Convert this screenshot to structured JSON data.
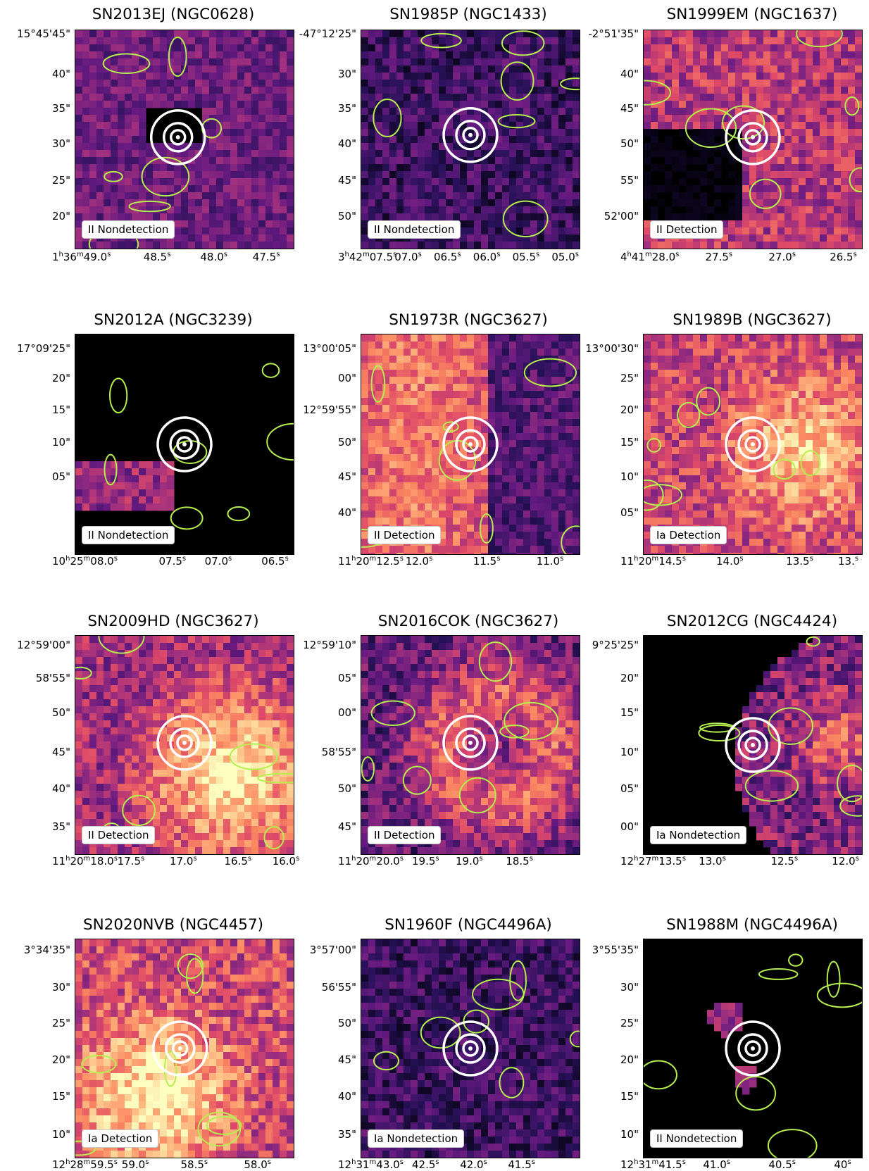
{
  "figure": {
    "contour_color": "#b5ef4e",
    "marker_color": "#ffffff",
    "colormap": "magma",
    "panels": [
      {
        "title": "SN2013EJ (NGC0628)",
        "label": "II Nondetection",
        "yticks": [
          "15°45'45\"",
          "40\"",
          "35\"",
          "30\"",
          "25\"",
          "20\""
        ],
        "xticks": [
          {
            "h": "1",
            "m": "36",
            "s": "49.0"
          },
          {
            "s": "48.5"
          },
          {
            "s": "48.0"
          },
          {
            "s": "47.5"
          }
        ]
      },
      {
        "title": "SN1985P (NGC1433)",
        "label": "II Nondetection",
        "yticks": [
          "-47°12'25\"",
          "30\"",
          "35\"",
          "40\"",
          "45\"",
          "50\""
        ],
        "xticks": [
          {
            "h": "3",
            "m": "42",
            "s": "07.5"
          },
          {
            "s": "07.0"
          },
          {
            "s": "06.5"
          },
          {
            "s": "06.0"
          },
          {
            "s": "05.5"
          },
          {
            "s": "05.0"
          }
        ]
      },
      {
        "title": "SN1999EM (NGC1637)",
        "label": "II Detection",
        "yticks": [
          "-2°51'35\"",
          "40\"",
          "45\"",
          "50\"",
          "55\"",
          "52'00\""
        ],
        "xticks": [
          {
            "h": "4",
            "m": "41",
            "s": "28.0"
          },
          {
            "s": "27.5"
          },
          {
            "s": "27.0"
          },
          {
            "s": "26.5"
          }
        ]
      },
      {
        "title": "SN2012A (NGC3239)",
        "label": "II Nondetection",
        "yticks": [
          "17°09'25\"",
          "20\"",
          "15\"",
          "10\"",
          "05\""
        ],
        "xticks": [
          {
            "h": "10",
            "m": "25",
            "s": "08.0"
          },
          {
            "s": "07.5"
          },
          {
            "s": "07.0"
          },
          {
            "s": "06.5"
          }
        ]
      },
      {
        "title": "SN1973R (NGC3627)",
        "label": "II Detection",
        "yticks": [
          "13°00'05\"",
          "00\"",
          "12°59'55\"",
          "50\"",
          "45\"",
          "40\""
        ],
        "xticks": [
          {
            "h": "11",
            "m": "20",
            "s": "12.5"
          },
          {
            "s": "12.0"
          },
          {
            "s": "11.5"
          },
          {
            "s": "11.0"
          }
        ]
      },
      {
        "title": "SN1989B (NGC3627)",
        "label": "Ia Detection",
        "yticks": [
          "13°00'30\"",
          "25\"",
          "20\"",
          "15\"",
          "10\"",
          "05\""
        ],
        "xticks": [
          {
            "h": "11",
            "m": "20",
            "s": "14.5"
          },
          {
            "s": "14.0"
          },
          {
            "s": "13.5"
          },
          {
            "s": "13."
          }
        ]
      },
      {
        "title": "SN2009HD (NGC3627)",
        "label": "II Detection",
        "yticks": [
          "12°59'00\"",
          "58'55\"",
          "50\"",
          "45\"",
          "40\"",
          "35\""
        ],
        "xticks": [
          {
            "h": "11",
            "m": "20",
            "s": "18.0"
          },
          {
            "s": "17.5"
          },
          {
            "s": "17.0"
          },
          {
            "s": "16.5"
          },
          {
            "s": "16.0"
          }
        ]
      },
      {
        "title": "SN2016COK (NGC3627)",
        "label": "II Detection",
        "yticks": [
          "12°59'10\"",
          "05\"",
          "00\"",
          "58'55\"",
          "50\"",
          "45\""
        ],
        "xticks": [
          {
            "h": "11",
            "m": "20",
            "s": "20.0"
          },
          {
            "s": "19.5"
          },
          {
            "s": "19.0"
          },
          {
            "s": "18.5"
          }
        ]
      },
      {
        "title": "SN2012CG (NGC4424)",
        "label": "Ia Nondetection",
        "yticks": [
          "9°25'25\"",
          "20\"",
          "15\"",
          "10\"",
          "05\"",
          "00\""
        ],
        "xticks": [
          {
            "h": "12",
            "m": "27",
            "s": "13.5"
          },
          {
            "s": "13.0"
          },
          {
            "s": "12.5"
          },
          {
            "s": "12.0"
          }
        ]
      },
      {
        "title": "SN2020NVB (NGC4457)",
        "label": "Ia Detection",
        "yticks": [
          "3°34'35\"",
          "30\"",
          "25\"",
          "20\"",
          "15\"",
          "10\""
        ],
        "xticks": [
          {
            "h": "12",
            "m": "28",
            "s": "59.5"
          },
          {
            "s": "59.0"
          },
          {
            "s": "58.5"
          },
          {
            "s": "58.0"
          }
        ]
      },
      {
        "title": "SN1960F (NGC4496A)",
        "label": "Ia Nondetection",
        "yticks": [
          "3°57'00\"",
          "56'55\"",
          "50\"",
          "45\"",
          "40\"",
          "35\""
        ],
        "xticks": [
          {
            "h": "12",
            "m": "31",
            "s": "43.0"
          },
          {
            "s": "42.5"
          },
          {
            "s": "42.0"
          },
          {
            "s": "41.5"
          }
        ]
      },
      {
        "title": "SN1988M (NGC4496A)",
        "label": "II Nondetection",
        "yticks": [
          "3°55'35\"",
          "30\"",
          "25\"",
          "20\"",
          "15\"",
          "10\""
        ],
        "xticks": [
          {
            "h": "12",
            "m": "31",
            "s": "41.5"
          },
          {
            "s": "41.0"
          },
          {
            "s": "40.5"
          },
          {
            "s": "40"
          }
        ]
      }
    ]
  }
}
